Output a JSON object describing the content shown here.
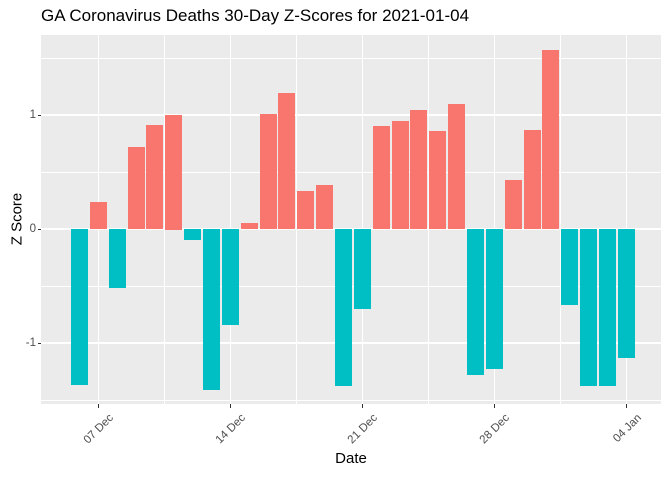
{
  "title": "GA Coronavirus Deaths 30-Day Z-Scores for 2021-01-04",
  "chart_data": {
    "type": "bar",
    "title": "GA Coronavirus Deaths 30-Day Z-Scores for 2021-01-04",
    "xlabel": "Date",
    "ylabel": "Z Score",
    "ylim": [
      -1.54,
      1.7
    ],
    "grid": true,
    "legend": "none",
    "panel_bg": "#EBEBEB",
    "gridline_color": "#FFFFFF",
    "axis_text_color": "#4D4D4D",
    "bar_colors": {
      "positive": "#F8766D",
      "negative": "#00BFC4"
    },
    "dates": [
      "2020-12-06",
      "2020-12-07",
      "2020-12-08",
      "2020-12-09",
      "2020-12-10",
      "2020-12-11",
      "2020-12-12",
      "2020-12-13",
      "2020-12-14",
      "2020-12-15",
      "2020-12-16",
      "2020-12-17",
      "2020-12-18",
      "2020-12-19",
      "2020-12-20",
      "2020-12-21",
      "2020-12-22",
      "2020-12-23",
      "2020-12-24",
      "2020-12-25",
      "2020-12-26",
      "2020-12-27",
      "2020-12-28",
      "2020-12-29",
      "2020-12-30",
      "2020-12-31",
      "2021-01-01",
      "2021-01-02",
      "2021-01-03",
      "2021-01-04"
    ],
    "values": [
      -1.37,
      0.24,
      -0.52,
      0.72,
      0.91,
      1.0,
      -0.1,
      -1.41,
      -0.84,
      0.05,
      1.01,
      1.19,
      0.33,
      0.39,
      -1.38,
      -0.7,
      0.9,
      0.95,
      1.04,
      0.86,
      1.1,
      -1.28,
      -1.23,
      0.43,
      0.87,
      1.57,
      -0.67,
      -1.38,
      -1.38,
      -1.13
    ],
    "x_ticks": [
      {
        "label": "07 Dec",
        "date": "2020-12-07"
      },
      {
        "label": "14 Dec",
        "date": "2020-12-14"
      },
      {
        "label": "21 Dec",
        "date": "2020-12-21"
      },
      {
        "label": "28 Dec",
        "date": "2020-12-28"
      },
      {
        "label": "04 Jan",
        "date": "2021-01-04"
      }
    ],
    "y_ticks": [
      {
        "label": "1",
        "value": 1
      },
      {
        "label": "0",
        "value": 0
      },
      {
        "label": "-1",
        "value": -1
      }
    ]
  }
}
